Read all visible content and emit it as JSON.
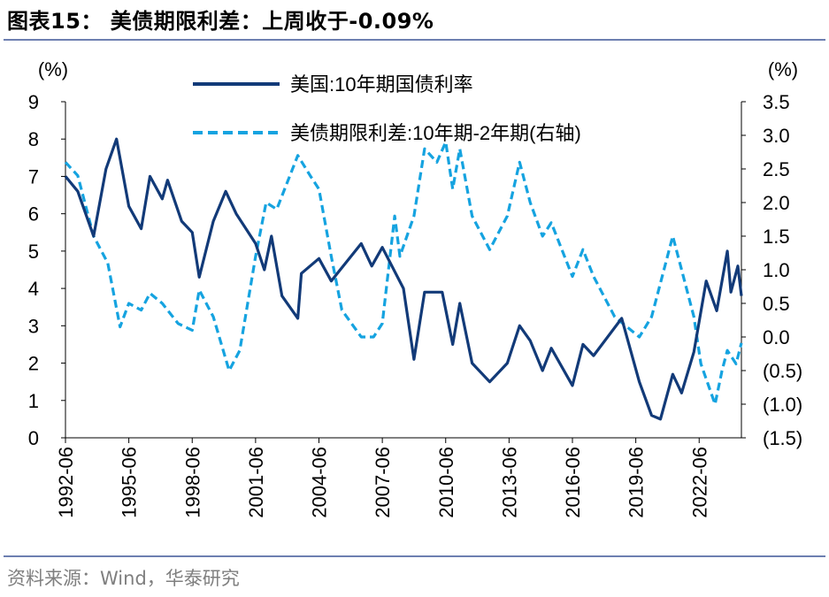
{
  "header": {
    "title": "图表15：  美债期限利差：上周收于-0.09%"
  },
  "footer": {
    "source": "资料来源：Wind，华泰研究"
  },
  "colors": {
    "primary": "#123a78",
    "secondary": "#15a3e0",
    "rule": "#6d7fb0"
  },
  "chart_data": {
    "type": "line",
    "left_axis_unit": "(%)",
    "right_axis_unit": "(%)",
    "left_ylim": [
      0,
      9
    ],
    "right_ylim": [
      -1.5,
      3.5
    ],
    "left_ticks": [
      "0",
      "1",
      "2",
      "3",
      "4",
      "5",
      "6",
      "7",
      "8",
      "9"
    ],
    "right_ticks": [
      "(1.5)",
      "(1.0)",
      "(0.5)",
      "0.0",
      "0.5",
      "1.0",
      "1.5",
      "2.0",
      "2.5",
      "3.0",
      "3.5"
    ],
    "x_ticks": [
      "1992-06",
      "1995-06",
      "1998-06",
      "2001-06",
      "2004-06",
      "2007-06",
      "2010-06",
      "2013-06",
      "2016-06",
      "2019-06",
      "2022-06"
    ],
    "xlim": [
      "1992-06",
      "2024-06"
    ],
    "grid": false,
    "legend_position": "top",
    "series": [
      {
        "name": "美国:10年期国债利率",
        "axis": "left",
        "style": "solid",
        "points": [
          [
            "1992-06",
            7.0
          ],
          [
            "1993-01",
            6.6
          ],
          [
            "1993-10",
            5.4
          ],
          [
            "1994-05",
            7.2
          ],
          [
            "1994-11",
            8.0
          ],
          [
            "1995-06",
            6.2
          ],
          [
            "1996-01",
            5.6
          ],
          [
            "1996-06",
            7.0
          ],
          [
            "1997-01",
            6.4
          ],
          [
            "1997-04",
            6.9
          ],
          [
            "1997-12",
            5.8
          ],
          [
            "1998-06",
            5.5
          ],
          [
            "1998-10",
            4.3
          ],
          [
            "1999-06",
            5.8
          ],
          [
            "2000-01",
            6.6
          ],
          [
            "2000-07",
            6.0
          ],
          [
            "2001-06",
            5.2
          ],
          [
            "2001-11",
            4.5
          ],
          [
            "2002-03",
            5.4
          ],
          [
            "2002-09",
            3.8
          ],
          [
            "2003-06",
            3.2
          ],
          [
            "2003-08",
            4.4
          ],
          [
            "2004-06",
            4.8
          ],
          [
            "2005-01",
            4.2
          ],
          [
            "2006-06",
            5.2
          ],
          [
            "2006-12",
            4.6
          ],
          [
            "2007-06",
            5.1
          ],
          [
            "2008-06",
            4.0
          ],
          [
            "2008-12",
            2.1
          ],
          [
            "2009-06",
            3.9
          ],
          [
            "2010-04",
            3.9
          ],
          [
            "2010-10",
            2.5
          ],
          [
            "2011-02",
            3.6
          ],
          [
            "2011-09",
            2.0
          ],
          [
            "2012-07",
            1.5
          ],
          [
            "2013-05",
            2.0
          ],
          [
            "2013-12",
            3.0
          ],
          [
            "2014-06",
            2.6
          ],
          [
            "2015-01",
            1.8
          ],
          [
            "2015-06",
            2.4
          ],
          [
            "2016-06",
            1.4
          ],
          [
            "2016-12",
            2.5
          ],
          [
            "2017-06",
            2.2
          ],
          [
            "2018-10",
            3.2
          ],
          [
            "2019-08",
            1.5
          ],
          [
            "2020-03",
            0.6
          ],
          [
            "2020-08",
            0.5
          ],
          [
            "2021-03",
            1.7
          ],
          [
            "2021-08",
            1.2
          ],
          [
            "2022-03",
            2.3
          ],
          [
            "2022-10",
            4.2
          ],
          [
            "2023-04",
            3.4
          ],
          [
            "2023-10",
            5.0
          ],
          [
            "2023-12",
            3.9
          ],
          [
            "2024-04",
            4.6
          ],
          [
            "2024-06",
            3.8
          ]
        ]
      },
      {
        "name": "美债期限利差:10年期-2年期(右轴)",
        "axis": "right",
        "style": "dashed",
        "points": [
          [
            "1992-06",
            2.6
          ],
          [
            "1993-01",
            2.4
          ],
          [
            "1993-10",
            1.5
          ],
          [
            "1994-06",
            1.1
          ],
          [
            "1995-01",
            0.15
          ],
          [
            "1995-06",
            0.5
          ],
          [
            "1996-01",
            0.4
          ],
          [
            "1996-06",
            0.65
          ],
          [
            "1997-01",
            0.5
          ],
          [
            "1997-10",
            0.2
          ],
          [
            "1998-06",
            0.1
          ],
          [
            "1998-10",
            0.7
          ],
          [
            "1999-06",
            0.3
          ],
          [
            "2000-03",
            -0.5
          ],
          [
            "2000-09",
            -0.2
          ],
          [
            "2001-06",
            1.2
          ],
          [
            "2001-12",
            2.0
          ],
          [
            "2002-06",
            1.9
          ],
          [
            "2003-06",
            2.7
          ],
          [
            "2004-01",
            2.4
          ],
          [
            "2004-06",
            2.2
          ],
          [
            "2005-01",
            1.2
          ],
          [
            "2005-07",
            0.4
          ],
          [
            "2006-06",
            0.0
          ],
          [
            "2007-01",
            0.0
          ],
          [
            "2007-06",
            0.2
          ],
          [
            "2008-01",
            1.8
          ],
          [
            "2008-04",
            1.2
          ],
          [
            "2008-12",
            1.8
          ],
          [
            "2009-06",
            2.8
          ],
          [
            "2010-01",
            2.6
          ],
          [
            "2010-06",
            2.9
          ],
          [
            "2010-10",
            2.2
          ],
          [
            "2011-02",
            2.8
          ],
          [
            "2011-09",
            1.8
          ],
          [
            "2012-07",
            1.3
          ],
          [
            "2013-05",
            1.8
          ],
          [
            "2013-12",
            2.6
          ],
          [
            "2014-06",
            2.0
          ],
          [
            "2015-01",
            1.5
          ],
          [
            "2015-06",
            1.7
          ],
          [
            "2016-06",
            0.9
          ],
          [
            "2016-12",
            1.3
          ],
          [
            "2017-06",
            0.9
          ],
          [
            "2018-06",
            0.3
          ],
          [
            "2019-08",
            0.0
          ],
          [
            "2020-03",
            0.3
          ],
          [
            "2021-03",
            1.5
          ],
          [
            "2021-08",
            1.0
          ],
          [
            "2022-03",
            0.3
          ],
          [
            "2022-07",
            -0.4
          ],
          [
            "2023-03",
            -1.0
          ],
          [
            "2023-07",
            -0.5
          ],
          [
            "2023-10",
            -0.2
          ],
          [
            "2024-03",
            -0.4
          ],
          [
            "2024-06",
            -0.09
          ]
        ]
      }
    ]
  }
}
